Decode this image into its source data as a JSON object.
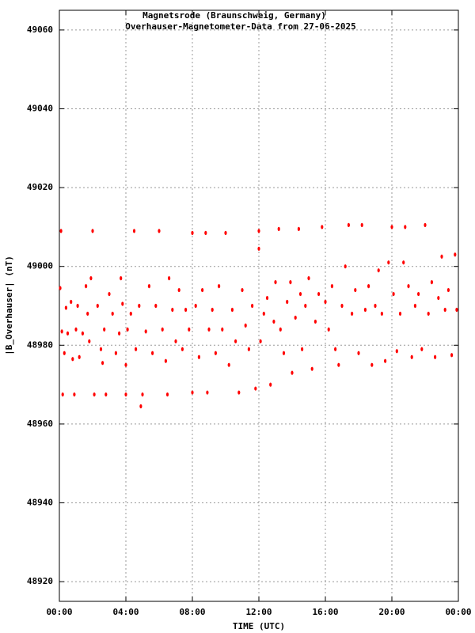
{
  "chart_data": {
    "type": "scatter",
    "title": "Magnetsrode (Braunschweig, Germany)",
    "subtitle": "Overhauser-Magnetometer-Data from 27-06-2025",
    "xlabel": "TIME (UTC)",
    "ylabel": "|B_Overhauser| (nT)",
    "xlim": [
      0,
      24
    ],
    "xticks": [
      {
        "value": 0,
        "label": "00:00"
      },
      {
        "value": 4,
        "label": "04:00"
      },
      {
        "value": 8,
        "label": "08:00"
      },
      {
        "value": 12,
        "label": "12:00"
      },
      {
        "value": 16,
        "label": "16:00"
      },
      {
        "value": 20,
        "label": "20:00"
      },
      {
        "value": 24,
        "label": "00:00"
      }
    ],
    "ylim": [
      48915,
      49065
    ],
    "yticks": [
      48920,
      48940,
      48960,
      48980,
      49000,
      49020,
      49040,
      49060
    ],
    "grid": true,
    "color": "#ff0000",
    "x": [
      0.05,
      0.1,
      0.15,
      0.2,
      0.3,
      0.4,
      0.5,
      0.7,
      0.8,
      0.9,
      1.0,
      1.1,
      1.2,
      1.4,
      1.6,
      1.7,
      1.8,
      1.9,
      2.0,
      2.1,
      2.3,
      2.5,
      2.6,
      2.7,
      2.8,
      3.0,
      3.2,
      3.4,
      3.6,
      3.7,
      3.8,
      4.0,
      4.0,
      4.1,
      4.3,
      4.5,
      4.6,
      4.8,
      4.9,
      5.0,
      5.2,
      5.4,
      5.6,
      5.8,
      6.0,
      6.2,
      6.4,
      6.5,
      6.6,
      6.8,
      7.0,
      7.2,
      7.4,
      7.6,
      7.8,
      8.0,
      8.0,
      8.2,
      8.4,
      8.6,
      8.8,
      8.9,
      9.0,
      9.2,
      9.4,
      9.6,
      9.8,
      10.0,
      10.2,
      10.4,
      10.6,
      10.8,
      11.0,
      11.2,
      11.4,
      11.6,
      11.8,
      12.0,
      12.0,
      12.1,
      12.3,
      12.5,
      12.7,
      12.9,
      13.0,
      13.2,
      13.3,
      13.5,
      13.7,
      13.9,
      14.0,
      14.2,
      14.4,
      14.5,
      14.6,
      14.8,
      15.0,
      15.2,
      15.4,
      15.6,
      15.8,
      16.0,
      16.2,
      16.4,
      16.6,
      16.8,
      17.0,
      17.2,
      17.4,
      17.6,
      17.8,
      18.0,
      18.2,
      18.4,
      18.6,
      18.8,
      19.0,
      19.2,
      19.4,
      19.6,
      19.8,
      20.0,
      20.1,
      20.3,
      20.5,
      20.7,
      20.8,
      21.0,
      21.2,
      21.4,
      21.6,
      21.8,
      22.0,
      22.2,
      22.4,
      22.6,
      22.8,
      23.0,
      23.2,
      23.4,
      23.6,
      23.8,
      23.9
    ],
    "values": [
      48994.5,
      49009,
      48983.5,
      48967.5,
      48978,
      48989.5,
      48983,
      48991,
      48976.5,
      48967.5,
      48984,
      48990,
      48977,
      48983,
      48995,
      48988,
      48981,
      48997,
      49009,
      48967.5,
      48990,
      48979,
      48975.5,
      48984,
      48967.5,
      48993,
      48988,
      48978,
      48983,
      48997,
      48990.5,
      48975,
      48967.5,
      48984,
      48988,
      49009,
      48979,
      48990,
      48964.5,
      48967.5,
      48983.5,
      48995,
      48978,
      48990,
      49009,
      48984,
      48976,
      48967.5,
      48997,
      48989,
      48981,
      48994,
      48979,
      48989,
      48984,
      49008.5,
      48968,
      48990,
      48977,
      48994,
      49008.5,
      48968,
      48984,
      48989,
      48978,
      48995,
      48984,
      49008.5,
      48975,
      48989,
      48981,
      48968,
      48994,
      48985,
      48979,
      48990,
      48969,
      49009,
      49004.5,
      48981,
      48988,
      48992,
      48970,
      48986,
      48996,
      49009.5,
      48984,
      48978,
      48991,
      48996,
      48973,
      48987,
      49009.5,
      48993,
      48979,
      48990,
      48997,
      48974,
      48986,
      48993,
      49010,
      48991,
      48984,
      48995,
      48979,
      48975,
      48990,
      49000,
      49010.5,
      48988,
      48994,
      48978,
      49010.5,
      48989,
      48995,
      48975,
      48990,
      48999,
      48988,
      48976,
      49001,
      49010,
      48993,
      48978.5,
      48988,
      49001,
      49010,
      48995,
      48977,
      48990,
      48993,
      48979,
      49010.5,
      48988,
      48996,
      48977,
      48992,
      49002.5,
      48989,
      48994,
      48977.5,
      49003,
      48989
    ]
  }
}
